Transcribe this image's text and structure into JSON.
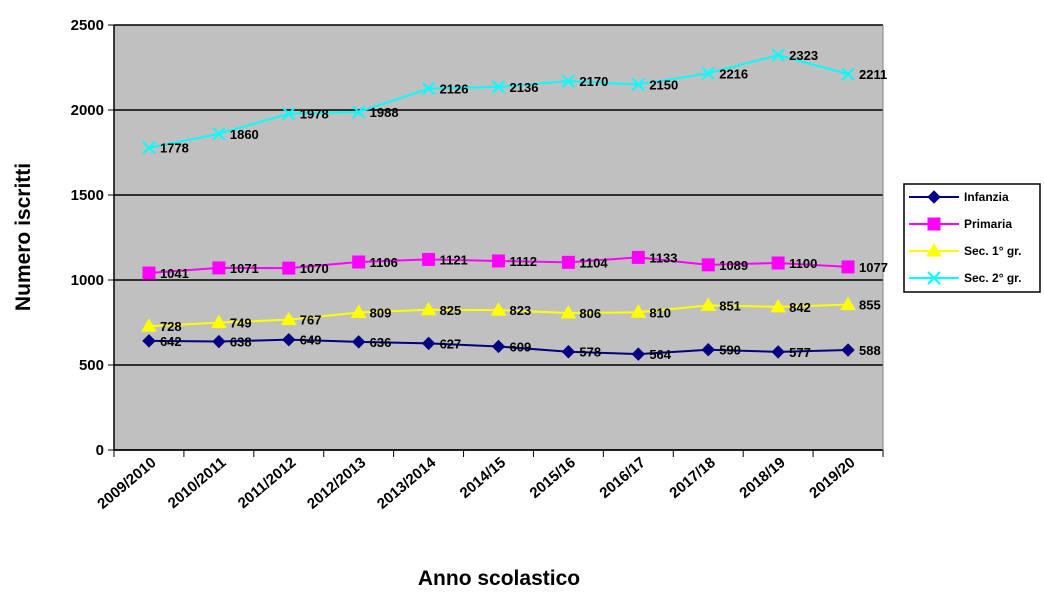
{
  "chart_data": {
    "type": "line",
    "title": "",
    "xlabel": "Anno scolastico",
    "ylabel": "Numero iscritti",
    "ylim": [
      0,
      2500
    ],
    "yticks": [
      0,
      500,
      1000,
      1500,
      2000,
      2500
    ],
    "grid": "horizontal",
    "legend_position": "right",
    "plot_background": "#c0c0c0",
    "categories": [
      "2009/2010",
      "2010/2011",
      "2011/2012",
      "2012/2013",
      "2013/2014",
      "2014/15",
      "2015/16",
      "2016/17",
      "2017/18",
      "2018/19",
      "2019/20"
    ],
    "series": [
      {
        "name": "Infanzia",
        "color": "#000080",
        "marker": "diamond",
        "values": [
          642,
          638,
          649,
          636,
          627,
          609,
          578,
          564,
          590,
          577,
          588
        ]
      },
      {
        "name": "Primaria",
        "color": "#ff00ff",
        "marker": "square",
        "values": [
          1041,
          1071,
          1070,
          1106,
          1121,
          1112,
          1104,
          1133,
          1089,
          1100,
          1077
        ]
      },
      {
        "name": "Sec. 1° gr.",
        "color": "#ffff00",
        "marker": "triangle",
        "values": [
          728,
          749,
          767,
          809,
          825,
          823,
          806,
          810,
          851,
          842,
          855
        ]
      },
      {
        "name": "Sec. 2° gr.",
        "color": "#00ffff",
        "marker": "x",
        "values": [
          1778,
          1860,
          1978,
          1988,
          2126,
          2136,
          2170,
          2150,
          2216,
          2323,
          2211
        ]
      }
    ]
  }
}
